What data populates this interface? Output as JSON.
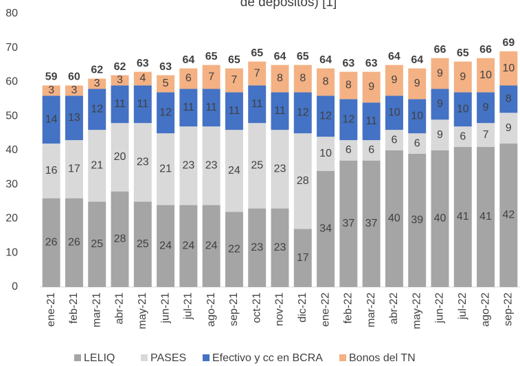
{
  "chart_data": {
    "type": "stacked_bar",
    "title": "de depósitos) [1]",
    "categories": [
      "ene-21",
      "feb-21",
      "mar-21",
      "abr-21",
      "may-21",
      "jun-21",
      "jul-21",
      "ago-21",
      "sep-21",
      "oct-21",
      "nov-21",
      "dic-21",
      "ene-22",
      "feb-22",
      "mar-22",
      "abr-22",
      "may-22",
      "jun-22",
      "jul-22",
      "ago-22",
      "sep-22"
    ],
    "series": [
      {
        "name": "LELIQ",
        "color": "#a5a5a5",
        "values": [
          26,
          26,
          25,
          28,
          25,
          24,
          24,
          24,
          22,
          23,
          23,
          17,
          34,
          37,
          37,
          40,
          39,
          40,
          41,
          41,
          42
        ]
      },
      {
        "name": "PASES",
        "color": "#d9d9d9",
        "values": [
          16,
          17,
          21,
          20,
          23,
          21,
          23,
          23,
          24,
          25,
          23,
          28,
          10,
          6,
          6,
          6,
          6,
          9,
          6,
          7,
          9
        ]
      },
      {
        "name": "Efectivo y cc en BCRA",
        "color": "#4472c4",
        "values": [
          14,
          13,
          12,
          11,
          11,
          12,
          11,
          11,
          11,
          11,
          11,
          12,
          12,
          12,
          11,
          10,
          10,
          9,
          10,
          9,
          8
        ]
      },
      {
        "name": "Bonos del TN",
        "color": "#f4b183",
        "values": [
          3,
          3,
          3,
          3,
          4,
          5,
          6,
          7,
          7,
          7,
          8,
          8,
          8,
          8,
          9,
          9,
          9,
          9,
          9,
          10,
          10
        ]
      }
    ],
    "totals": [
      59,
      60,
      62,
      62,
      63,
      63,
      64,
      65,
      65,
      65,
      64,
      65,
      64,
      63,
      63,
      64,
      64,
      66,
      65,
      66,
      69
    ],
    "ylim": [
      0,
      80
    ],
    "yticks": [
      0,
      10,
      20,
      30,
      40,
      50,
      60,
      70,
      80
    ],
    "grid": false,
    "legend": "bottom"
  }
}
